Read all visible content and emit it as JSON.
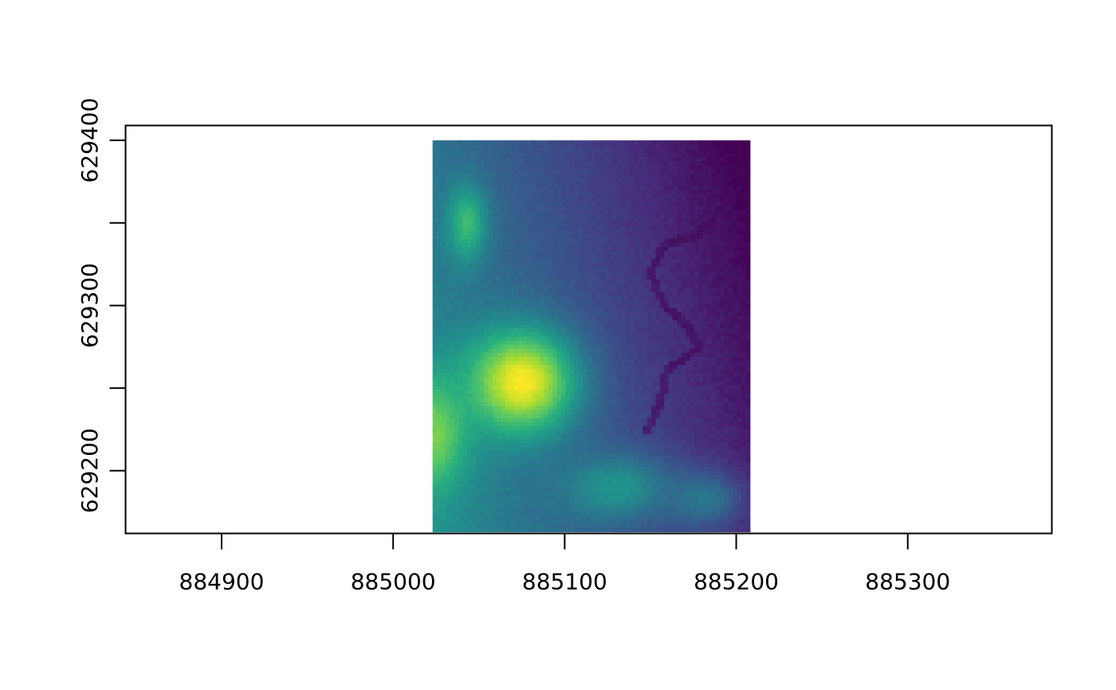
{
  "chart_data": {
    "type": "heatmap",
    "title": "",
    "xlabel": "",
    "ylabel": "",
    "xlim": [
      884844,
      885384
    ],
    "ylim": [
      629162,
      629409
    ],
    "x_ticks": [
      {
        "value": 884900,
        "label": "884900"
      },
      {
        "value": 885000,
        "label": "885000"
      },
      {
        "value": 885100,
        "label": "885100"
      },
      {
        "value": 885200,
        "label": "885200"
      },
      {
        "value": 885300,
        "label": "885300"
      }
    ],
    "y_ticks": [
      {
        "value": 629200,
        "label": "629200"
      },
      {
        "value": 629250,
        "label": ""
      },
      {
        "value": 629300,
        "label": "629300"
      },
      {
        "value": 629350,
        "label": ""
      },
      {
        "value": 629400,
        "label": "629400"
      }
    ],
    "raster_extent": {
      "xmin": 885023,
      "xmax": 885208,
      "ymin": 629163,
      "ymax": 629400
    },
    "colormap": [
      "#440154",
      "#472d7b",
      "#3b528b",
      "#2c728e",
      "#21918c",
      "#28ae80",
      "#5ec962",
      "#addc30",
      "#fde725"
    ],
    "value_range": [
      0,
      1
    ],
    "features": [
      {
        "kind": "peak",
        "x": 885075,
        "y": 629254,
        "value": 1.0,
        "sx": 22,
        "sy": 22
      },
      {
        "kind": "peak",
        "x": 885023,
        "y": 629222,
        "value": 0.8,
        "sx": 14,
        "sy": 24
      },
      {
        "kind": "peak",
        "x": 885043,
        "y": 629350,
        "value": 0.68,
        "sx": 8,
        "sy": 16
      },
      {
        "kind": "peak",
        "x": 885130,
        "y": 629190,
        "value": 0.52,
        "sx": 22,
        "sy": 14
      },
      {
        "kind": "peak",
        "x": 885180,
        "y": 629183,
        "value": 0.4,
        "sx": 16,
        "sy": 12
      },
      {
        "kind": "channel",
        "value": 0.02,
        "path": [
          [
            885190,
            629398
          ],
          [
            885195,
            629385
          ],
          [
            885193,
            629360
          ],
          [
            885178,
            629343
          ],
          [
            885158,
            629337
          ],
          [
            885150,
            629320
          ],
          [
            885158,
            629300
          ],
          [
            885172,
            629287
          ],
          [
            885178,
            629275
          ],
          [
            885170,
            629268
          ],
          [
            885160,
            629262
          ],
          [
            885155,
            629240
          ],
          [
            885148,
            629224
          ]
        ]
      }
    ],
    "grid": false,
    "legend": "none"
  }
}
